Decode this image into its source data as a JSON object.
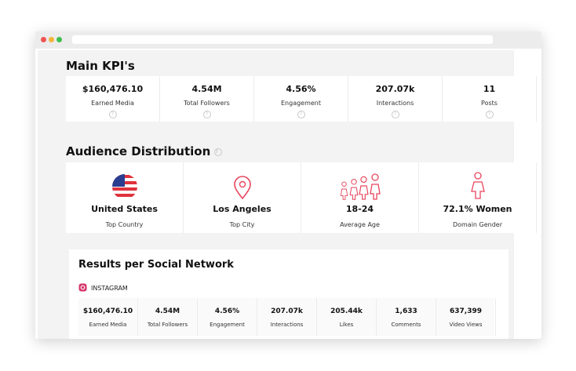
{
  "kpi": {
    "title": "Main KPI's",
    "items": [
      {
        "value": "$160,476.10",
        "label": "Earned Media"
      },
      {
        "value": "4.54M",
        "label": "Total Followers"
      },
      {
        "value": "4.56%",
        "label": "Engagement"
      },
      {
        "value": "207.07k",
        "label": "Interactions"
      },
      {
        "value": "11",
        "label": "Posts"
      }
    ]
  },
  "audience": {
    "title": "Audience Distribution",
    "items": [
      {
        "value": "United States",
        "label": "Top Country"
      },
      {
        "value": "Los Angeles",
        "label": "Top City"
      },
      {
        "value": "18-24",
        "label": "Average Age"
      },
      {
        "value": "72.1% Women",
        "label": "Domain Gender"
      }
    ]
  },
  "results": {
    "title": "Results per Social Network",
    "network": "INSTAGRAM",
    "items": [
      {
        "value": "$160,476.10",
        "label": "Earned Media"
      },
      {
        "value": "4.54M",
        "label": "Total Followers"
      },
      {
        "value": "4.56%",
        "label": "Engagement"
      },
      {
        "value": "207.07k",
        "label": "Interactions"
      },
      {
        "value": "205.44k",
        "label": "Likes"
      },
      {
        "value": "1,633",
        "label": "Comments"
      },
      {
        "value": "637,399",
        "label": "Video Views"
      }
    ]
  }
}
